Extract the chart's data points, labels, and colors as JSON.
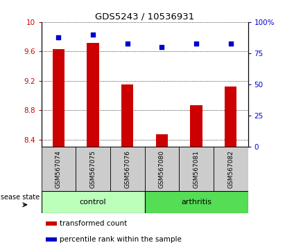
{
  "title": "GDS5243 / 10536931",
  "samples": [
    "GSM567074",
    "GSM567075",
    "GSM567076",
    "GSM567080",
    "GSM567081",
    "GSM567082"
  ],
  "bar_values": [
    9.63,
    9.72,
    9.15,
    8.47,
    8.87,
    9.12
  ],
  "scatter_values": [
    88,
    90,
    83,
    80,
    83,
    83
  ],
  "ylim_left": [
    8.3,
    10.0
  ],
  "ylim_right": [
    0,
    100
  ],
  "yticks_left": [
    8.4,
    8.8,
    9.2,
    9.6,
    10.0
  ],
  "ytick_labels_left": [
    "8.4",
    "8.8",
    "9.2",
    "9.6",
    "10"
  ],
  "yticks_right": [
    0,
    25,
    50,
    75,
    100
  ],
  "ytick_labels_right": [
    "0",
    "25",
    "50",
    "75",
    "100%"
  ],
  "bar_color": "#cc0000",
  "scatter_color": "#0000cc",
  "control_color": "#bbffbb",
  "arthritis_color": "#55dd55",
  "xticklabel_bg": "#cccccc",
  "bar_bottom": 8.3,
  "legend_bar_label": "transformed count",
  "legend_scatter_label": "percentile rank within the sample",
  "disease_state_label": "disease state"
}
